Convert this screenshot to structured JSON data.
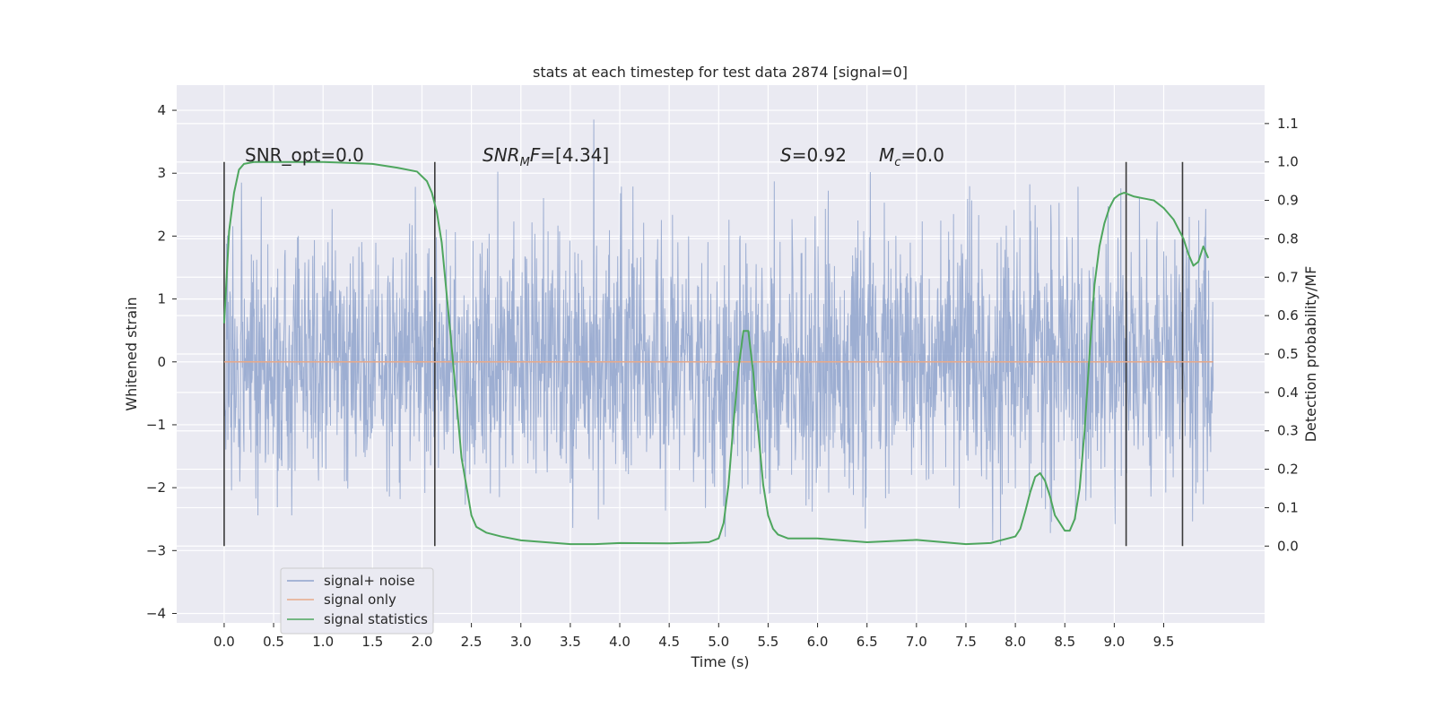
{
  "chart_data": {
    "type": "line",
    "title": "stats at each timestep for test data 2874 [signal=0]",
    "xlabel": "Time (s)",
    "ylabel": "Whitened strain",
    "y2label": "Detection probability/MF",
    "xlim": [
      -0.48,
      10.52
    ],
    "ylim": [
      -4.15,
      4.4
    ],
    "y2lim": [
      -0.2,
      1.2
    ],
    "xticks": [
      "0.0",
      "0.5",
      "1.0",
      "1.5",
      "2.0",
      "2.5",
      "3.0",
      "3.5",
      "4.0",
      "4.5",
      "5.0",
      "5.5",
      "6.0",
      "6.5",
      "7.0",
      "7.5",
      "8.0",
      "8.5",
      "9.0",
      "9.5"
    ],
    "yticks": [
      "4",
      "3",
      "2",
      "1",
      "0",
      "−1",
      "−2",
      "−3",
      "−4"
    ],
    "y2ticks": [
      "1.1",
      "1.0",
      "0.9",
      "0.8",
      "0.7",
      "0.6",
      "0.5",
      "0.4",
      "0.3",
      "0.2",
      "0.1",
      "0.0"
    ],
    "grid": true,
    "legend_position": "lower-left",
    "legend": [
      "signal+ noise",
      "signal only",
      "signal statistics"
    ],
    "annotations": {
      "snr_opt": "SNR_opt=0.0",
      "snr_mf": "=[4.34]",
      "s": "=0.92",
      "mc": "=0.0"
    },
    "series": [
      {
        "name": "signal+ noise",
        "color": "#8fa3cc",
        "axis": "left",
        "description_range": [
          -3.6,
          4.05
        ],
        "x_range": [
          0.0,
          10.0
        ]
      },
      {
        "name": "signal only",
        "color": "#e8a98a",
        "axis": "left",
        "x": [
          0.0,
          10.0
        ],
        "y": [
          0.0,
          0.0
        ]
      },
      {
        "name": "signal statistics",
        "color": "#4ea65e",
        "axis": "right",
        "x": [
          0.0,
          0.05,
          0.1,
          0.15,
          0.2,
          0.3,
          0.5,
          1.0,
          1.5,
          1.75,
          1.95,
          2.05,
          2.1,
          2.15,
          2.2,
          2.3,
          2.4,
          2.5,
          2.55,
          2.65,
          2.8,
          3.0,
          3.5,
          3.75,
          4.0,
          4.5,
          4.9,
          5.0,
          5.05,
          5.1,
          5.15,
          5.2,
          5.25,
          5.3,
          5.35,
          5.4,
          5.45,
          5.5,
          5.55,
          5.6,
          5.7,
          6.0,
          6.5,
          7.0,
          7.5,
          7.75,
          8.0,
          8.05,
          8.1,
          8.15,
          8.2,
          8.25,
          8.3,
          8.35,
          8.4,
          8.5,
          8.55,
          8.6,
          8.65,
          8.7,
          8.75,
          8.8,
          8.85,
          8.9,
          8.95,
          9.0,
          9.05,
          9.1,
          9.15,
          9.2,
          9.3,
          9.4,
          9.5,
          9.6,
          9.7,
          9.75,
          9.8,
          9.85,
          9.9,
          9.95
        ],
        "y": [
          0.58,
          0.82,
          0.92,
          0.98,
          0.995,
          1.0,
          1.0,
          1.0,
          0.995,
          0.985,
          0.975,
          0.95,
          0.92,
          0.87,
          0.79,
          0.52,
          0.23,
          0.08,
          0.05,
          0.035,
          0.025,
          0.015,
          0.005,
          0.005,
          0.008,
          0.007,
          0.01,
          0.02,
          0.06,
          0.16,
          0.32,
          0.46,
          0.56,
          0.56,
          0.45,
          0.3,
          0.16,
          0.08,
          0.045,
          0.03,
          0.02,
          0.02,
          0.01,
          0.016,
          0.005,
          0.008,
          0.025,
          0.045,
          0.09,
          0.14,
          0.18,
          0.19,
          0.17,
          0.13,
          0.08,
          0.04,
          0.04,
          0.07,
          0.15,
          0.3,
          0.5,
          0.68,
          0.78,
          0.84,
          0.88,
          0.905,
          0.915,
          0.92,
          0.915,
          0.91,
          0.905,
          0.9,
          0.88,
          0.85,
          0.8,
          0.76,
          0.73,
          0.74,
          0.78,
          0.75
        ]
      }
    ],
    "vlines": [
      0.0,
      2.13,
      9.12,
      9.69
    ]
  }
}
